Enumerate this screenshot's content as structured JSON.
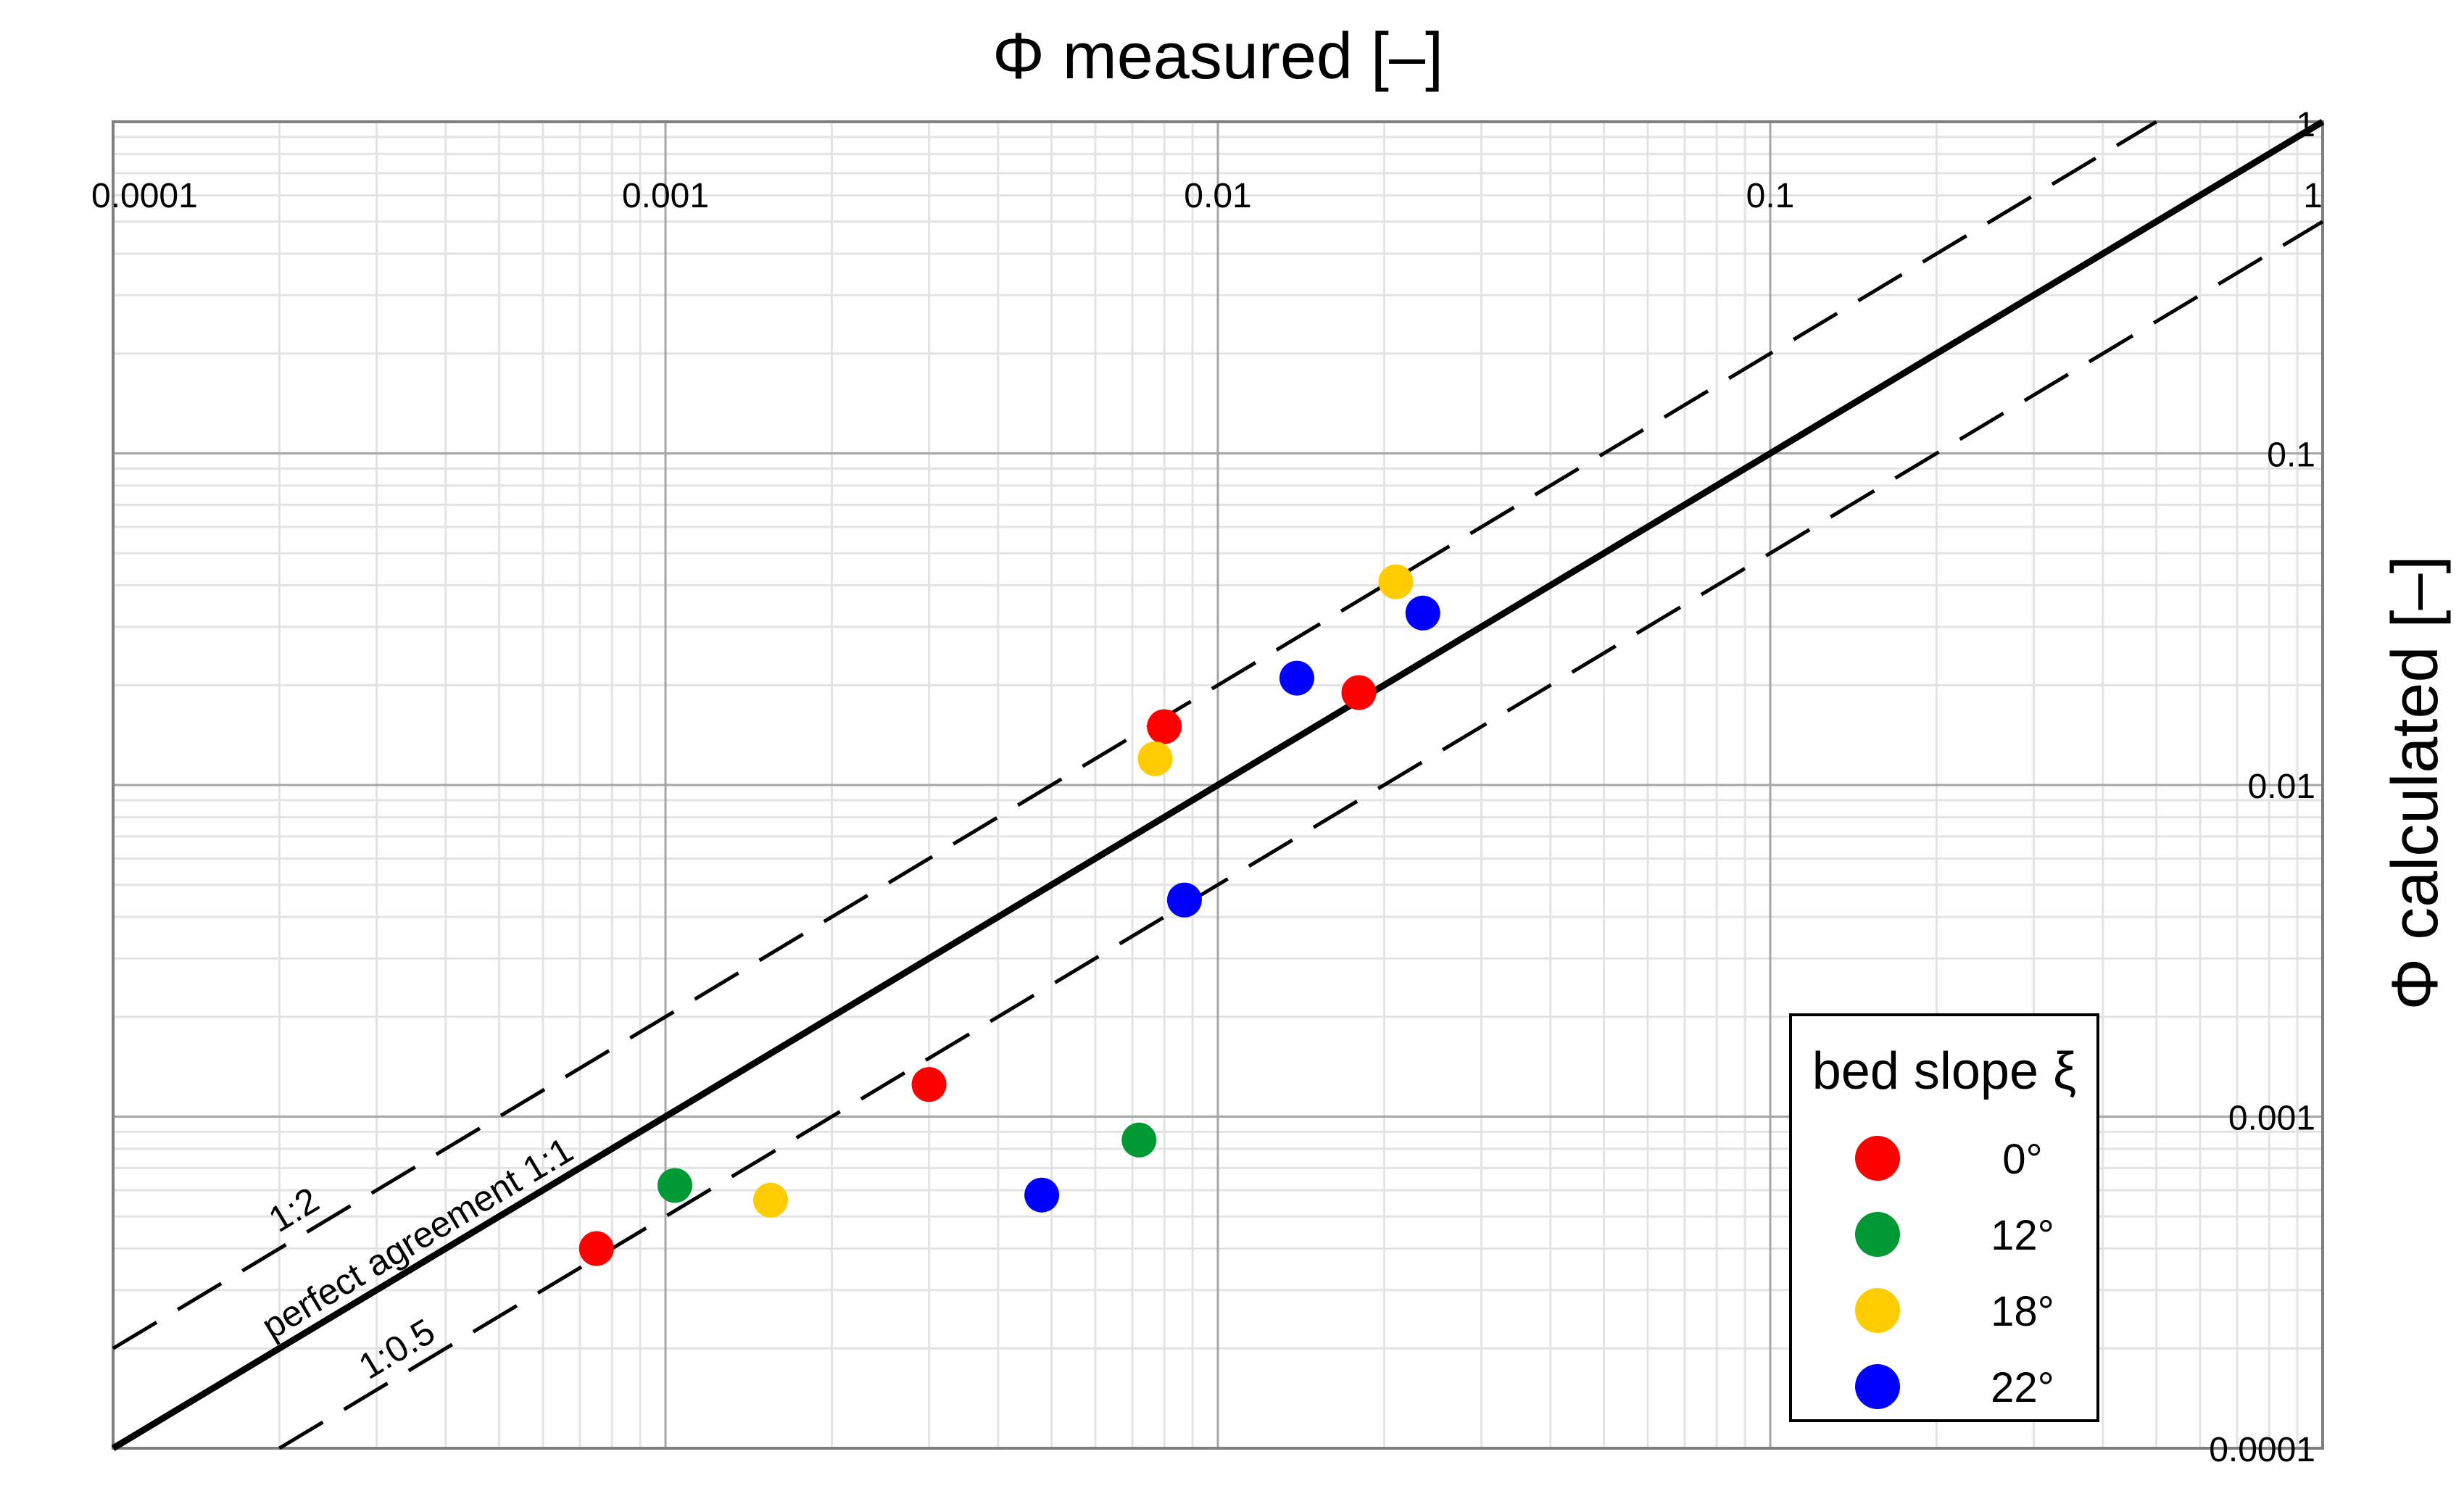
{
  "chart_data": {
    "type": "scatter",
    "xlabel": "Φ measured [–]",
    "ylabel": "Φ calculated [–]",
    "xscale": "log",
    "yscale": "log",
    "xlim": [
      0.0001,
      1
    ],
    "ylim": [
      0.0001,
      1
    ],
    "x_ticks": [
      "0.0001",
      "0.001",
      "0.01",
      "0.1",
      "1"
    ],
    "y_ticks": [
      "0.0001",
      "0.001",
      "0.01",
      "0.1",
      "1"
    ],
    "grid": true,
    "legend": {
      "title": "bed slope ξ",
      "placement": "bottom-right"
    },
    "reference_lines": [
      {
        "label": "perfect agreement 1:1",
        "ratio": 1,
        "style": "solid"
      },
      {
        "label": "1:2",
        "ratio": 2,
        "style": "dashed"
      },
      {
        "label": "1:0.5",
        "ratio": 0.5,
        "style": "dashed"
      }
    ],
    "series": [
      {
        "name": "0°",
        "color": "#ff0000",
        "points": [
          {
            "x": 0.00075,
            "y": 0.0004
          },
          {
            "x": 0.003,
            "y": 0.00125
          },
          {
            "x": 0.008,
            "y": 0.015
          },
          {
            "x": 0.018,
            "y": 0.019
          }
        ]
      },
      {
        "name": "12°",
        "color": "#009933",
        "points": [
          {
            "x": 0.00104,
            "y": 0.00062
          },
          {
            "x": 0.0072,
            "y": 0.00085
          }
        ]
      },
      {
        "name": "18°",
        "color": "#ffcc00",
        "points": [
          {
            "x": 0.00155,
            "y": 0.00056
          },
          {
            "x": 0.0077,
            "y": 0.012
          },
          {
            "x": 0.021,
            "y": 0.041
          }
        ]
      },
      {
        "name": "22°",
        "color": "#0000ff",
        "points": [
          {
            "x": 0.0048,
            "y": 0.00058
          },
          {
            "x": 0.0087,
            "y": 0.0045
          },
          {
            "x": 0.0139,
            "y": 0.021
          },
          {
            "x": 0.0235,
            "y": 0.033
          }
        ]
      }
    ]
  }
}
